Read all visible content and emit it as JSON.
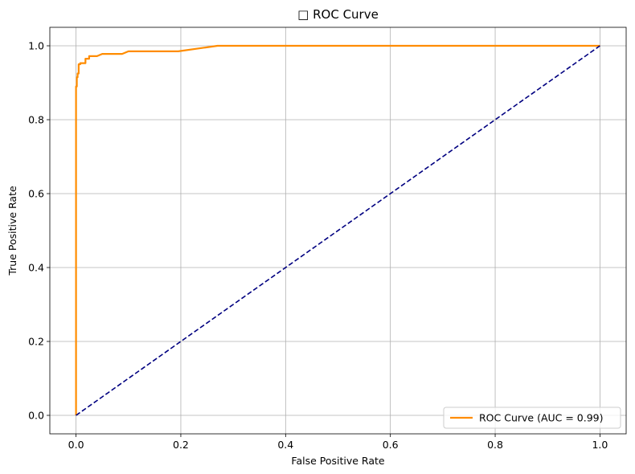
{
  "chart_data": {
    "type": "line",
    "title": "□ ROC Curve",
    "xlabel": "False Positive Rate",
    "ylabel": "True Positive Rate",
    "xlim": [
      -0.05,
      1.05
    ],
    "ylim": [
      -0.05,
      1.05
    ],
    "xticks": [
      "0.0",
      "0.2",
      "0.4",
      "0.6",
      "0.8",
      "1.0"
    ],
    "yticks": [
      "0.0",
      "0.2",
      "0.4",
      "0.6",
      "0.8",
      "1.0"
    ],
    "grid": true,
    "legend_position": "lower right",
    "series": [
      {
        "name": "ROC Curve (AUC = 0.99)",
        "color": "#ff8c00",
        "style": "solid",
        "x": [
          0.0,
          0.0,
          0.0,
          0.0015,
          0.0015,
          0.003,
          0.003,
          0.005,
          0.005,
          0.008,
          0.008,
          0.018,
          0.018,
          0.025,
          0.025,
          0.04,
          0.05,
          0.088,
          0.1,
          0.195,
          0.27,
          1.0
        ],
        "y": [
          0.0,
          0.67,
          0.89,
          0.89,
          0.915,
          0.915,
          0.925,
          0.925,
          0.95,
          0.95,
          0.953,
          0.953,
          0.965,
          0.965,
          0.972,
          0.972,
          0.978,
          0.978,
          0.985,
          0.985,
          1.0,
          1.0
        ]
      },
      {
        "name": "",
        "color": "#000080",
        "style": "dashed",
        "x": [
          0.0,
          1.0
        ],
        "y": [
          0.0,
          1.0
        ]
      }
    ]
  }
}
